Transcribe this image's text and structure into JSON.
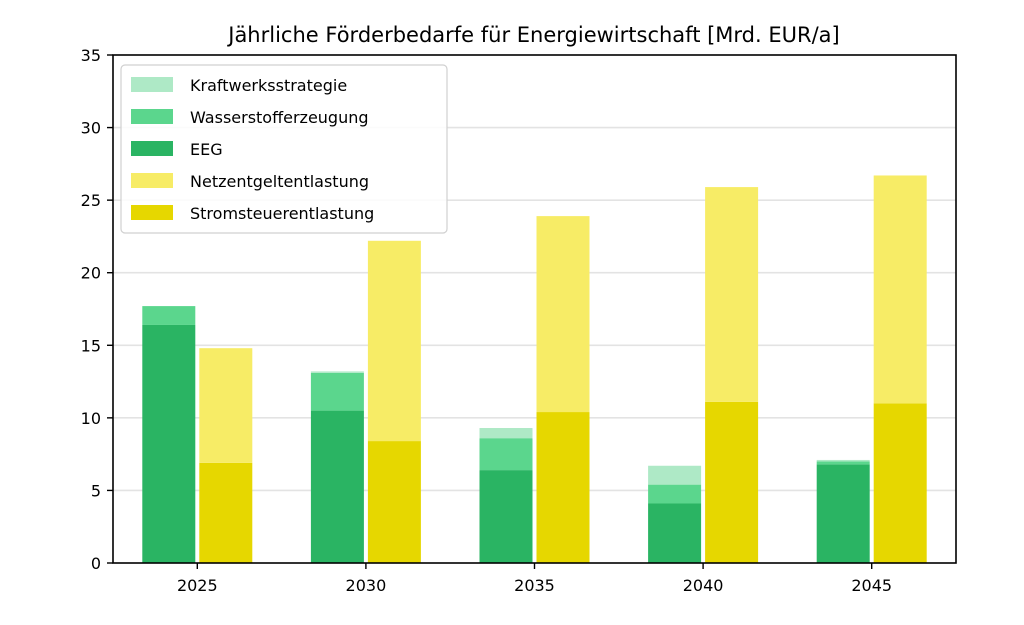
{
  "chart_data": {
    "type": "bar",
    "stacked": true,
    "title": "Jährliche Förderbedarfe für Energiewirtschaft [Mrd. EUR/a]",
    "xlabel": "",
    "ylabel": "",
    "categories": [
      "2025",
      "2030",
      "2035",
      "2040",
      "2045"
    ],
    "ylim": [
      0,
      35
    ],
    "yticks": [
      0,
      5,
      10,
      15,
      20,
      25,
      30,
      35
    ],
    "grid": true,
    "legend_position": "top-left",
    "groups": [
      {
        "name": "left",
        "series": [
          {
            "name": "EEG",
            "color": "#2ab463",
            "values": [
              16.4,
              10.5,
              6.4,
              4.1,
              6.8
            ]
          },
          {
            "name": "Wasserstofferzeugung",
            "color": "#5bd68d",
            "values": [
              1.3,
              2.6,
              2.2,
              1.3,
              0.2
            ]
          },
          {
            "name": "Kraftwerksstrategie",
            "color": "#aee9c6",
            "values": [
              0.0,
              0.1,
              0.7,
              1.3,
              0.1
            ]
          }
        ]
      },
      {
        "name": "right",
        "series": [
          {
            "name": "Stromsteuerentlastung",
            "color": "#e6d700",
            "values": [
              6.9,
              8.4,
              10.4,
              11.1,
              11.0
            ]
          },
          {
            "name": "Netzentgeltentlastung",
            "color": "#f7ec66",
            "values": [
              7.9,
              13.8,
              13.5,
              14.8,
              15.7
            ]
          }
        ]
      }
    ],
    "legend": [
      {
        "label": "Kraftwerksstrategie",
        "color": "#aee9c6"
      },
      {
        "label": "Wasserstofferzeugung",
        "color": "#5bd68d"
      },
      {
        "label": "EEG",
        "color": "#2ab463"
      },
      {
        "label": "Netzentgeltentlastung",
        "color": "#f7ec66"
      },
      {
        "label": "Stromsteuerentlastung",
        "color": "#e6d700"
      }
    ]
  }
}
